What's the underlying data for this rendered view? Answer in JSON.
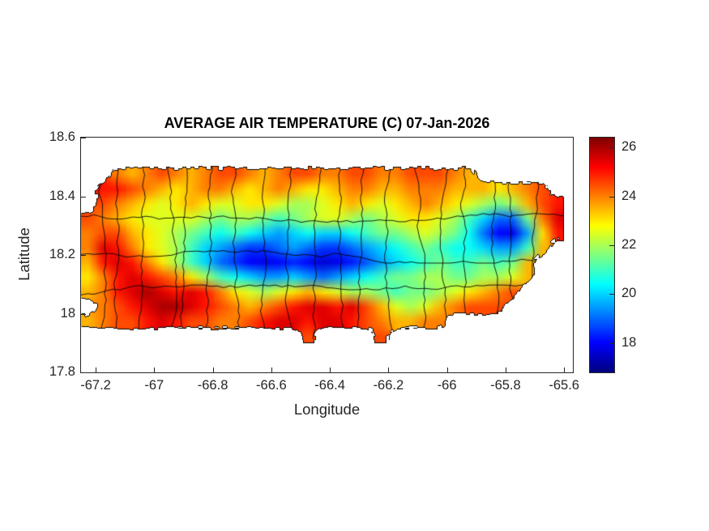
{
  "chart_data": {
    "type": "heatmap",
    "title": "AVERAGE AIR TEMPERATURE (C) 07-Jan-2026",
    "xlabel": "Longitude",
    "ylabel": "Latitude",
    "units": "C",
    "date": "07-Jan-2026",
    "xlim": [
      -67.25,
      -65.57
    ],
    "ylim": [
      17.8,
      18.6
    ],
    "x_ticks": [
      -67.2,
      -67,
      -66.8,
      -66.6,
      -66.4,
      -66.2,
      -66,
      -65.8,
      -65.6
    ],
    "x_tick_labels": [
      "-67.2",
      "-67",
      "-66.8",
      "-66.6",
      "-66.4",
      "-66.2",
      "-66",
      "-65.8",
      "-65.6"
    ],
    "y_ticks": [
      17.8,
      18,
      18.2,
      18.4,
      18.6
    ],
    "y_tick_labels": [
      "17.8",
      "18",
      "18.2",
      "18.4",
      "18.6"
    ],
    "colorbar": {
      "colormap": "jet",
      "range": [
        16.8,
        26.4
      ],
      "ticks": [
        18,
        20,
        22,
        24,
        26
      ],
      "tick_labels": [
        "18",
        "20",
        "22",
        "24",
        "26"
      ]
    },
    "grid": {
      "lon_start": -67.225,
      "lon_step": 0.05,
      "lat_start": 18.525,
      "lat_step": -0.05,
      "values": [
        [
          null,
          null,
          null,
          null,
          null,
          null,
          null,
          null,
          null,
          null,
          null,
          null,
          null,
          null,
          null,
          null,
          null,
          null,
          null,
          null,
          null,
          null,
          null,
          null,
          null,
          null,
          null,
          null,
          null,
          null,
          null,
          null,
          null
        ],
        [
          null,
          null,
          24,
          23.5,
          24,
          24.5,
          24,
          23.5,
          24,
          24.5,
          24.5,
          24,
          23.5,
          24,
          24.5,
          24.5,
          24,
          24,
          24.5,
          24.5,
          24,
          24,
          24.5,
          24.5,
          24.5,
          24,
          23.5,
          null,
          null,
          null,
          null,
          null,
          null
        ],
        [
          null,
          25,
          25,
          24.5,
          24,
          23.5,
          23,
          23.5,
          24,
          24,
          23.5,
          23,
          23.5,
          24,
          23.5,
          23,
          23,
          23.5,
          24,
          24,
          23.5,
          23.5,
          24,
          24,
          24,
          23.5,
          23.5,
          23.5,
          23,
          23.5,
          24,
          24.5,
          null
        ],
        [
          null,
          24.5,
          24,
          23.5,
          23,
          22.5,
          23,
          23.5,
          23,
          22.5,
          22.5,
          23,
          23,
          22.5,
          22,
          22,
          22.5,
          23,
          23.5,
          23,
          22.5,
          23,
          23.5,
          24,
          23.5,
          23,
          22.5,
          22,
          21.5,
          22,
          23.5,
          24.5,
          25
        ],
        [
          24.5,
          24,
          23.5,
          23,
          22.5,
          22.5,
          22.5,
          22.5,
          22,
          21.5,
          22,
          22,
          21.5,
          21,
          21.5,
          22,
          22.5,
          22.5,
          22,
          21.5,
          22,
          22.5,
          23,
          23,
          22.5,
          22,
          21,
          20,
          19,
          19,
          21.5,
          24,
          25.5
        ],
        [
          24,
          24.5,
          24.5,
          23.5,
          23,
          22.5,
          22,
          21.5,
          21,
          20.5,
          21,
          20.5,
          20,
          19.5,
          20,
          20.5,
          20,
          20,
          20.5,
          21,
          21.5,
          21.5,
          22,
          22.5,
          22,
          21.5,
          20.5,
          19,
          18,
          17.8,
          19.5,
          23,
          25
        ],
        [
          24,
          25.5,
          25,
          24,
          23,
          22.5,
          22,
          21,
          20,
          19.5,
          19,
          18.5,
          18.5,
          19,
          19.5,
          19,
          18.5,
          18.5,
          19,
          19.5,
          20,
          20.5,
          21,
          21.5,
          21,
          20.5,
          20.5,
          20,
          19.5,
          19.5,
          21,
          23.5,
          null
        ],
        [
          23.5,
          25,
          25.5,
          25,
          24,
          23,
          22,
          21,
          20,
          19,
          18.5,
          18,
          17.8,
          18,
          18.3,
          18,
          17.6,
          17.8,
          18.2,
          18.8,
          19.5,
          20,
          20.5,
          21,
          21.5,
          21,
          21,
          21.5,
          21,
          21.5,
          23.5,
          null,
          null
        ],
        [
          23,
          24,
          25,
          25.5,
          25,
          24.5,
          24,
          23,
          22,
          21,
          20.5,
          20,
          19.5,
          19.5,
          20,
          19.5,
          19,
          19.5,
          20,
          20.5,
          21,
          21.5,
          21.5,
          22,
          22,
          21.5,
          21.5,
          22,
          22,
          22.5,
          23.5,
          null,
          null
        ],
        [
          23.5,
          24,
          25,
          25.5,
          26,
          25.5,
          25,
          25.5,
          25,
          24,
          23,
          22.5,
          22,
          22.5,
          23,
          23.5,
          23,
          22.5,
          22,
          22,
          21.5,
          21,
          21.5,
          21.5,
          22,
          22.5,
          23,
          23.5,
          24,
          24.5,
          null,
          null,
          null
        ],
        [
          null,
          24,
          24.5,
          25,
          25.5,
          26,
          26,
          25.5,
          25,
          24.5,
          24,
          23.5,
          24,
          24.5,
          25,
          25.5,
          25.5,
          25,
          25.5,
          24.5,
          23.5,
          22.5,
          22,
          22.5,
          23.5,
          24,
          24.5,
          24.5,
          24.5,
          null,
          null,
          null,
          null
        ],
        [
          23.5,
          24,
          24.5,
          24.5,
          25,
          25.5,
          25,
          24.5,
          24.5,
          24,
          24,
          24.5,
          25,
          25.5,
          25.5,
          25,
          25.5,
          25.5,
          25,
          24.5,
          24,
          23.5,
          23.5,
          24,
          24,
          null,
          null,
          null,
          null,
          null,
          null,
          null,
          null
        ],
        [
          null,
          null,
          null,
          null,
          null,
          null,
          null,
          null,
          null,
          null,
          null,
          null,
          null,
          null,
          null,
          24.5,
          null,
          null,
          null,
          null,
          24.5,
          null,
          null,
          null,
          null,
          null,
          null,
          null,
          null,
          null,
          null,
          null,
          null
        ]
      ]
    }
  }
}
